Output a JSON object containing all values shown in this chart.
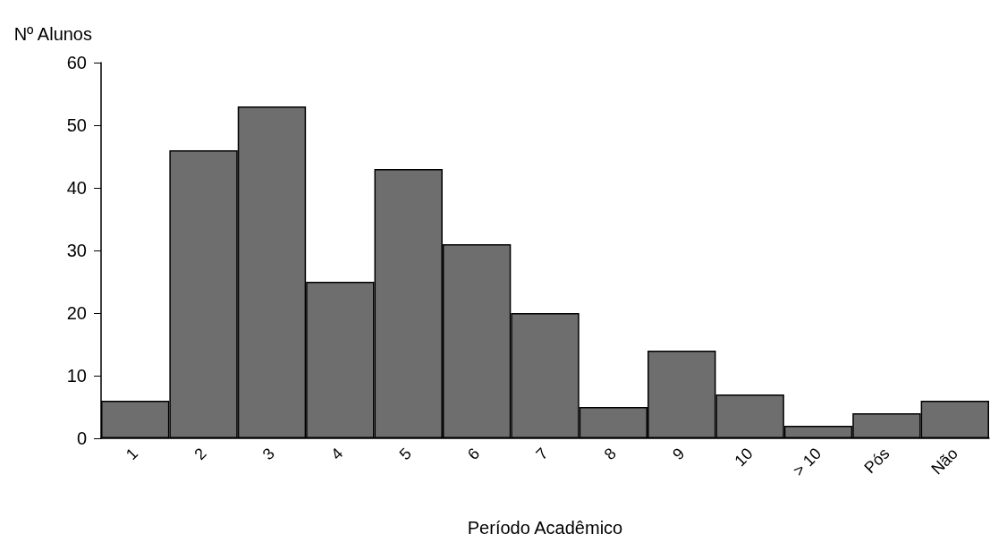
{
  "chart_data": {
    "type": "bar",
    "xlabel": "Período Acadêmico",
    "ylabel": "Nº Alunos",
    "categories": [
      "1",
      "2",
      "3",
      "4",
      "5",
      "6",
      "7",
      "8",
      "9",
      "10",
      "> 10",
      "Pós",
      "Não"
    ],
    "values": [
      6,
      46,
      53,
      25,
      43,
      31,
      20,
      5,
      14,
      7,
      2,
      4,
      6
    ],
    "color": "#6e6e6e",
    "ylim": [
      0,
      60
    ],
    "yticks": [
      0,
      10,
      20,
      30,
      40,
      50,
      60
    ],
    "grid": false
  }
}
